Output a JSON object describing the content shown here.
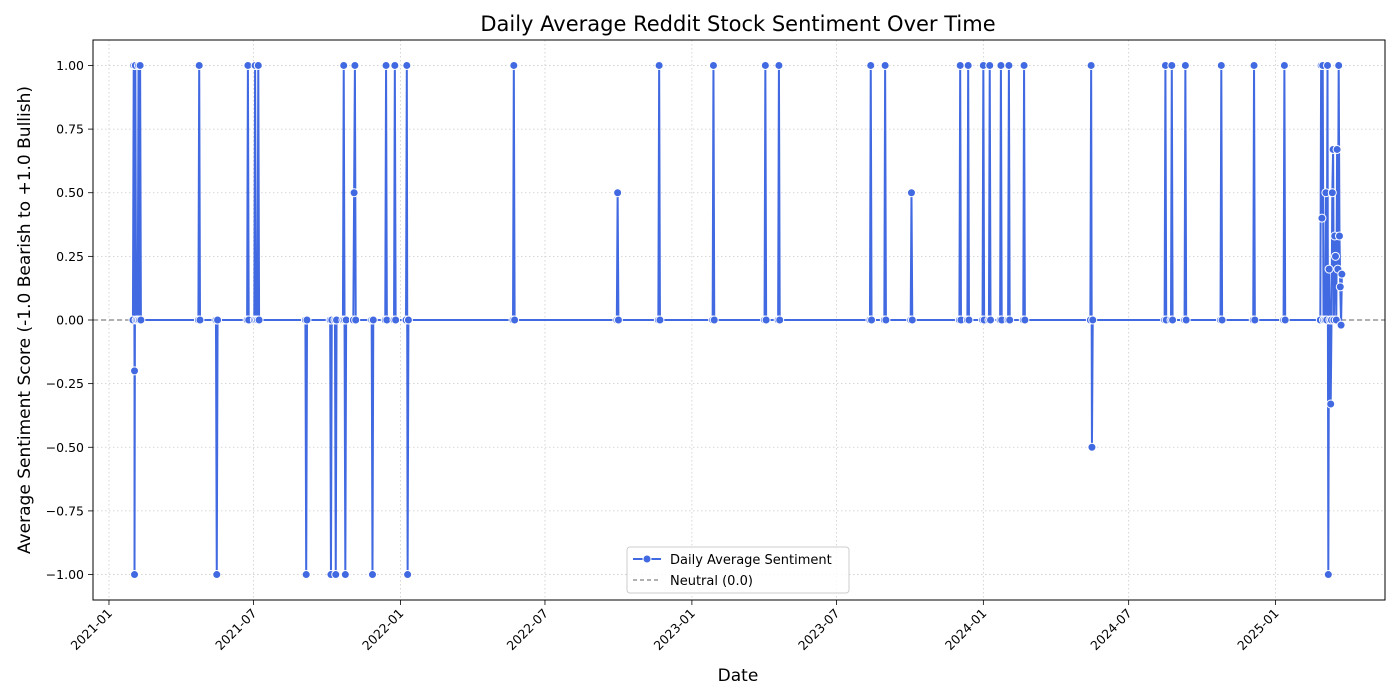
{
  "chart_data": {
    "type": "line",
    "title": "Daily Average Reddit Stock Sentiment Over Time",
    "xlabel": "Date",
    "ylabel": "Average Sentiment Score (-1.0 Bearish to +1.0 Bullish)",
    "xlim": [
      "2020-12-12",
      "2025-05-18"
    ],
    "ylim": [
      -1.1,
      1.1
    ],
    "grid": true,
    "legend_position": "lower-center",
    "x_ticks": [
      "2021-01",
      "2021-07",
      "2022-01",
      "2022-07",
      "2023-01",
      "2023-07",
      "2024-01",
      "2024-07",
      "2025-01"
    ],
    "y_ticks": [
      "−1.00",
      "−0.75",
      "−0.50",
      "−0.25",
      "0.00",
      "0.25",
      "0.50",
      "0.75",
      "1.00"
    ],
    "neutral_line": {
      "name": "Neutral (0.0)",
      "value": 0.0,
      "color": "#808080"
    },
    "series": [
      {
        "name": "Daily Average Sentiment",
        "color": "#4169e1",
        "points": [
          [
            "2021-01-31",
            0
          ],
          [
            "2021-02-01",
            1
          ],
          [
            "2021-02-02",
            -0.2
          ],
          [
            "2021-02-02",
            -1
          ],
          [
            "2021-02-03",
            1
          ],
          [
            "2021-02-04",
            0
          ],
          [
            "2021-02-06",
            0
          ],
          [
            "2021-02-07",
            1
          ],
          [
            "2021-02-08",
            0
          ],
          [
            "2021-02-09",
            1
          ],
          [
            "2021-02-10",
            0
          ],
          [
            "2021-04-23",
            0
          ],
          [
            "2021-04-24",
            1
          ],
          [
            "2021-04-25",
            0
          ],
          [
            "2021-05-15",
            0
          ],
          [
            "2021-05-16",
            -1
          ],
          [
            "2021-05-17",
            0
          ],
          [
            "2021-06-23",
            0
          ],
          [
            "2021-06-24",
            1
          ],
          [
            "2021-06-25",
            0
          ],
          [
            "2021-07-02",
            0
          ],
          [
            "2021-07-03",
            1
          ],
          [
            "2021-07-04",
            0
          ],
          [
            "2021-07-06",
            0
          ],
          [
            "2021-07-07",
            1
          ],
          [
            "2021-07-08",
            0
          ],
          [
            "2021-09-04",
            0
          ],
          [
            "2021-09-05",
            -1
          ],
          [
            "2021-09-06",
            0
          ],
          [
            "2021-10-05",
            0
          ],
          [
            "2021-10-06",
            -1
          ],
          [
            "2021-10-07",
            0
          ],
          [
            "2021-10-11",
            0
          ],
          [
            "2021-10-12",
            -1
          ],
          [
            "2021-10-13",
            0
          ],
          [
            "2021-10-21",
            0
          ],
          [
            "2021-10-22",
            1
          ],
          [
            "2021-10-23",
            0
          ],
          [
            "2021-10-24",
            -1
          ],
          [
            "2021-10-25",
            0
          ],
          [
            "2021-11-03",
            0
          ],
          [
            "2021-11-04",
            0.5
          ],
          [
            "2021-11-05",
            1
          ],
          [
            "2021-11-06",
            0
          ],
          [
            "2021-11-26",
            0
          ],
          [
            "2021-11-27",
            -1
          ],
          [
            "2021-11-28",
            0
          ],
          [
            "2021-12-13",
            0
          ],
          [
            "2021-12-14",
            1
          ],
          [
            "2021-12-15",
            0
          ],
          [
            "2021-12-24",
            0
          ],
          [
            "2021-12-25",
            1
          ],
          [
            "2021-12-26",
            0
          ],
          [
            "2022-01-08",
            0
          ],
          [
            "2022-01-09",
            1
          ],
          [
            "2022-01-10",
            -1
          ],
          [
            "2022-01-11",
            0
          ],
          [
            "2022-05-22",
            0
          ],
          [
            "2022-05-23",
            1
          ],
          [
            "2022-05-24",
            0
          ],
          [
            "2022-09-29",
            0
          ],
          [
            "2022-09-30",
            0.5
          ],
          [
            "2022-10-01",
            0
          ],
          [
            "2022-11-20",
            0
          ],
          [
            "2022-11-21",
            1
          ],
          [
            "2022-11-22",
            0
          ],
          [
            "2023-01-27",
            0
          ],
          [
            "2023-01-28",
            1
          ],
          [
            "2023-01-29",
            0
          ],
          [
            "2023-04-02",
            0
          ],
          [
            "2023-04-03",
            1
          ],
          [
            "2023-04-04",
            0
          ],
          [
            "2023-04-19",
            0
          ],
          [
            "2023-04-20",
            1
          ],
          [
            "2023-04-21",
            0
          ],
          [
            "2023-08-12",
            0
          ],
          [
            "2023-08-13",
            1
          ],
          [
            "2023-08-14",
            0
          ],
          [
            "2023-08-30",
            0
          ],
          [
            "2023-08-31",
            1
          ],
          [
            "2023-09-01",
            0
          ],
          [
            "2023-10-02",
            0
          ],
          [
            "2023-10-03",
            0.5
          ],
          [
            "2023-10-04",
            0
          ],
          [
            "2023-12-02",
            0
          ],
          [
            "2023-12-03",
            1
          ],
          [
            "2023-12-04",
            0
          ],
          [
            "2023-12-12",
            0
          ],
          [
            "2023-12-13",
            1
          ],
          [
            "2023-12-14",
            0
          ],
          [
            "2023-12-31",
            0
          ],
          [
            "2024-01-01",
            1
          ],
          [
            "2024-01-02",
            0
          ],
          [
            "2024-01-08",
            0
          ],
          [
            "2024-01-09",
            1
          ],
          [
            "2024-01-10",
            0
          ],
          [
            "2024-01-22",
            0
          ],
          [
            "2024-01-23",
            1
          ],
          [
            "2024-01-24",
            0
          ],
          [
            "2024-02-01",
            0
          ],
          [
            "2024-02-02",
            1
          ],
          [
            "2024-02-03",
            0
          ],
          [
            "2024-02-20",
            0
          ],
          [
            "2024-02-21",
            1
          ],
          [
            "2024-02-22",
            0
          ],
          [
            "2024-05-14",
            0
          ],
          [
            "2024-05-15",
            1
          ],
          [
            "2024-05-16",
            -0.5
          ],
          [
            "2024-05-17",
            0
          ],
          [
            "2024-08-15",
            0
          ],
          [
            "2024-08-16",
            1
          ],
          [
            "2024-08-17",
            0
          ],
          [
            "2024-08-23",
            0
          ],
          [
            "2024-08-24",
            1
          ],
          [
            "2024-08-25",
            0
          ],
          [
            "2024-09-09",
            0
          ],
          [
            "2024-09-10",
            1
          ],
          [
            "2024-09-11",
            0
          ],
          [
            "2024-10-24",
            0
          ],
          [
            "2024-10-25",
            1
          ],
          [
            "2024-10-26",
            0
          ],
          [
            "2024-12-04",
            0
          ],
          [
            "2024-12-05",
            1
          ],
          [
            "2024-12-06",
            0
          ],
          [
            "2025-01-11",
            0
          ],
          [
            "2025-01-12",
            1
          ],
          [
            "2025-01-13",
            0
          ],
          [
            "2025-02-26",
            0
          ],
          [
            "2025-02-27",
            1
          ],
          [
            "2025-02-28",
            0.4
          ],
          [
            "2025-03-01",
            1
          ],
          [
            "2025-03-02",
            0
          ],
          [
            "2025-03-04",
            0
          ],
          [
            "2025-03-05",
            0.5
          ],
          [
            "2025-03-06",
            0
          ],
          [
            "2025-03-07",
            1
          ],
          [
            "2025-03-08",
            -1
          ],
          [
            "2025-03-09",
            0.2
          ],
          [
            "2025-03-10",
            0
          ],
          [
            "2025-03-11",
            -0.33
          ],
          [
            "2025-03-12",
            0
          ],
          [
            "2025-03-13",
            0.5
          ],
          [
            "2025-03-14",
            0.67
          ],
          [
            "2025-03-15",
            0
          ],
          [
            "2025-03-16",
            0.33
          ],
          [
            "2025-03-17",
            0.25
          ],
          [
            "2025-03-18",
            0
          ],
          [
            "2025-03-19",
            0.67
          ],
          [
            "2025-03-20",
            0.2
          ],
          [
            "2025-03-21",
            1
          ],
          [
            "2025-03-22",
            0.33
          ],
          [
            "2025-03-23",
            0.13
          ],
          [
            "2025-03-24",
            -0.02
          ],
          [
            "2025-03-25",
            0.18
          ]
        ]
      }
    ]
  }
}
